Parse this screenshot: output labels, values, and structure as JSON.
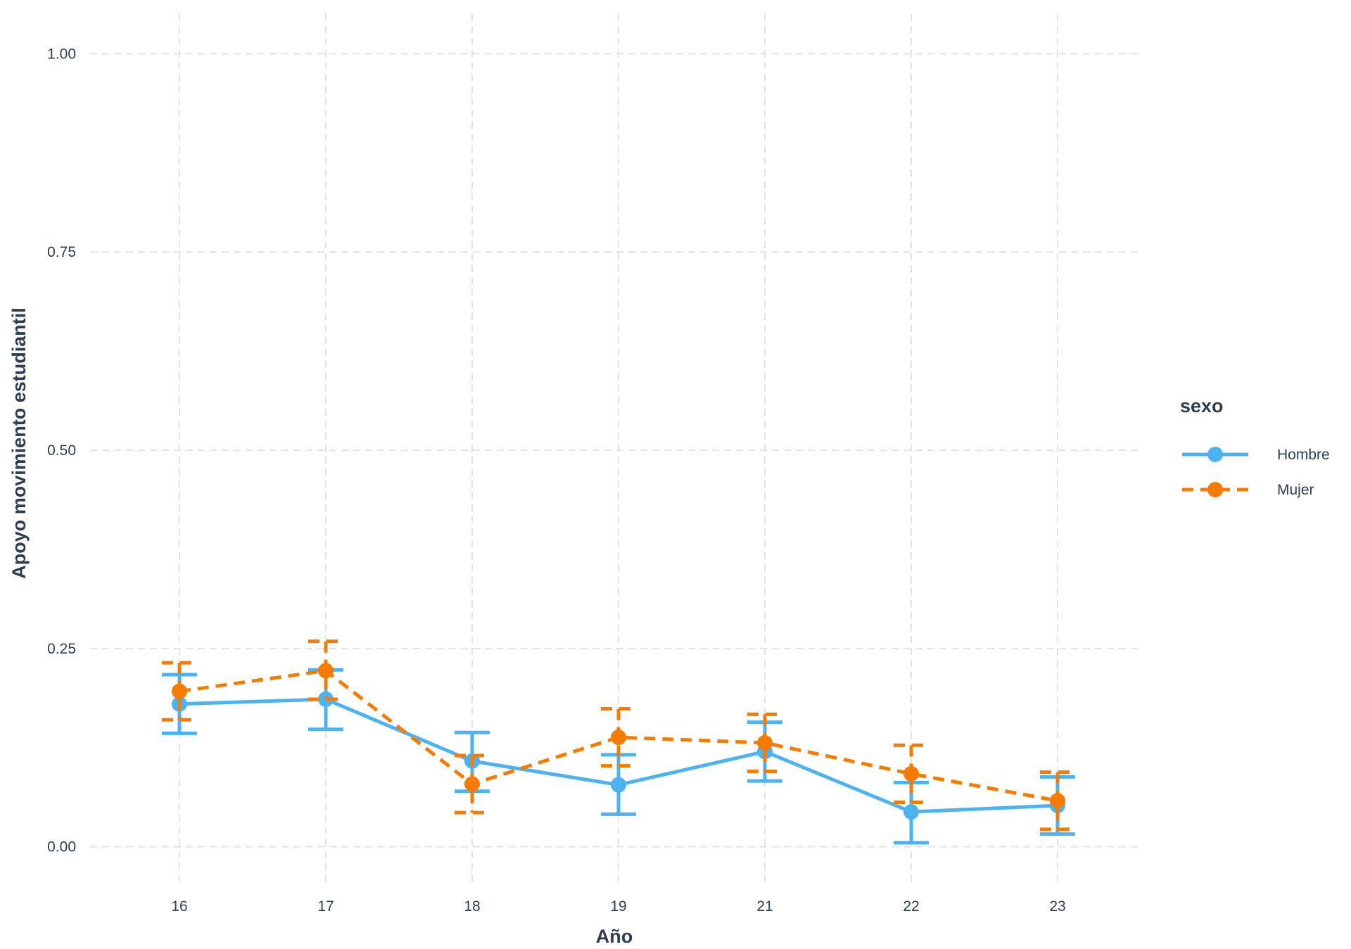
{
  "chart_data": {
    "type": "line",
    "xlabel": "Año",
    "ylabel": "Apoyo movimiento estudiantil",
    "categories": [
      "16",
      "17",
      "18",
      "19",
      "21",
      "22",
      "23"
    ],
    "ylim": [
      -0.05,
      1.05
    ],
    "yticks": [
      0.0,
      0.25,
      0.5,
      0.75,
      1.0
    ],
    "ytick_labels": [
      "0.00",
      "0.25",
      "0.50",
      "0.75",
      "1.00"
    ],
    "grid": true,
    "error_bars": true,
    "legend": {
      "title": "sexo",
      "position": "right"
    },
    "series": [
      {
        "name": "Hombre",
        "color": "#4DB3F0",
        "line_style": "solid",
        "values": [
          0.18,
          0.186,
          0.108,
          0.078,
          0.12,
          0.044,
          0.052
        ],
        "lower": [
          0.143,
          0.148,
          0.07,
          0.041,
          0.083,
          0.005,
          0.016
        ],
        "upper": [
          0.217,
          0.223,
          0.144,
          0.116,
          0.157,
          0.081,
          0.088
        ]
      },
      {
        "name": "Mujer",
        "color": "#F57C00",
        "line_style": "dashed",
        "values": [
          0.196,
          0.222,
          0.079,
          0.138,
          0.131,
          0.092,
          0.058
        ],
        "lower": [
          0.16,
          0.186,
          0.043,
          0.102,
          0.095,
          0.056,
          0.022
        ],
        "upper": [
          0.232,
          0.259,
          0.115,
          0.174,
          0.167,
          0.128,
          0.094
        ]
      }
    ]
  }
}
